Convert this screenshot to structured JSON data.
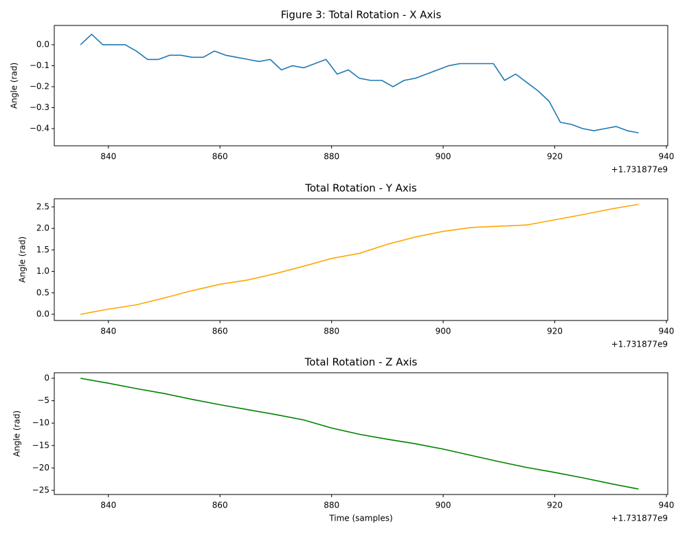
{
  "chart_data": [
    {
      "type": "line",
      "title": "Figure 3: Total Rotation - X Axis",
      "ylabel": "Angle (rad)",
      "x_offset_label": "+1.731877e9",
      "x": [
        835,
        837,
        839,
        841,
        843,
        845,
        847,
        849,
        851,
        853,
        855,
        857,
        859,
        861,
        863,
        865,
        867,
        869,
        871,
        873,
        875,
        877,
        879,
        881,
        883,
        885,
        887,
        889,
        891,
        893,
        895,
        897,
        899,
        901,
        903,
        905,
        907,
        909,
        911,
        913,
        915,
        917,
        919,
        921,
        923,
        925,
        927,
        929,
        931,
        933,
        935
      ],
      "values": [
        0.0,
        0.05,
        0.0,
        0.0,
        0.0,
        -0.03,
        -0.07,
        -0.07,
        -0.05,
        -0.05,
        -0.06,
        -0.06,
        -0.03,
        -0.05,
        -0.06,
        -0.07,
        -0.08,
        -0.07,
        -0.12,
        -0.1,
        -0.11,
        -0.09,
        -0.07,
        -0.14,
        -0.12,
        -0.16,
        -0.17,
        -0.17,
        -0.2,
        -0.17,
        -0.16,
        -0.14,
        -0.12,
        -0.1,
        -0.09,
        -0.09,
        -0.09,
        -0.09,
        -0.17,
        -0.14,
        -0.18,
        -0.22,
        -0.27,
        -0.37,
        -0.38,
        -0.4,
        -0.41,
        -0.4,
        -0.39,
        -0.41,
        -0.42
      ],
      "color": "#1f77b4",
      "xlim": [
        830.3,
        940.25
      ],
      "ylim": [
        -0.482,
        0.092
      ],
      "xticks": [
        840,
        860,
        880,
        900,
        920,
        940
      ],
      "yticks": [
        {
          "value": 0,
          "label": "0.0"
        },
        {
          "value": -0.1,
          "label": "−0.1"
        },
        {
          "value": -0.2,
          "label": "−0.2"
        },
        {
          "value": -0.3,
          "label": "−0.3"
        },
        {
          "value": -0.4,
          "label": "−0.4"
        }
      ]
    },
    {
      "type": "line",
      "title": "Total Rotation - Y Axis",
      "ylabel": "Angle (rad)",
      "x_offset_label": "+1.731877e9",
      "x": [
        835,
        840,
        845,
        850,
        855,
        860,
        865,
        870,
        875,
        880,
        885,
        890,
        895,
        900,
        905,
        910,
        915,
        920,
        925,
        930,
        935
      ],
      "values": [
        0.0,
        0.12,
        0.22,
        0.38,
        0.55,
        0.7,
        0.8,
        0.95,
        1.12,
        1.3,
        1.42,
        1.63,
        1.8,
        1.93,
        2.02,
        2.05,
        2.08,
        2.2,
        2.32,
        2.45,
        2.56
      ],
      "color": "orange",
      "xlim": [
        830.3,
        940.25
      ],
      "ylim": [
        -0.144,
        2.69
      ],
      "xticks": [
        840,
        860,
        880,
        900,
        920,
        940
      ],
      "yticks": [
        {
          "value": 0,
          "label": "0.0"
        },
        0.5,
        {
          "value": 1,
          "label": "1.0"
        },
        1.5,
        {
          "value": 2,
          "label": "2.0"
        },
        2.5
      ]
    },
    {
      "type": "line",
      "title": "Total Rotation - Z Axis",
      "ylabel": "Angle (rad)",
      "xlabel": "Time (samples)",
      "x_offset_label": "+1.731877e9",
      "x": [
        835,
        840,
        845,
        850,
        855,
        860,
        865,
        870,
        875,
        880,
        885,
        890,
        895,
        900,
        905,
        910,
        915,
        920,
        925,
        930,
        935
      ],
      "values": [
        0,
        -1.1,
        -2.3,
        -3.4,
        -4.7,
        -5.9,
        -7.0,
        -8.1,
        -9.3,
        -11.1,
        -12.5,
        -13.6,
        -14.6,
        -15.8,
        -17.2,
        -18.6,
        -19.9,
        -21.0,
        -22.2,
        -23.5,
        -24.7
      ],
      "color": "green",
      "xlim": [
        830.3,
        940.25
      ],
      "ylim": [
        -25.92,
        1.23
      ],
      "xticks": [
        840,
        860,
        880,
        900,
        920,
        940
      ],
      "yticks": [
        0,
        {
          "value": -5,
          "label": "−5"
        },
        {
          "value": -10,
          "label": "−10"
        },
        {
          "value": -15,
          "label": "−15"
        },
        {
          "value": -20,
          "label": "−20"
        },
        {
          "value": -25,
          "label": "−25"
        }
      ]
    }
  ]
}
